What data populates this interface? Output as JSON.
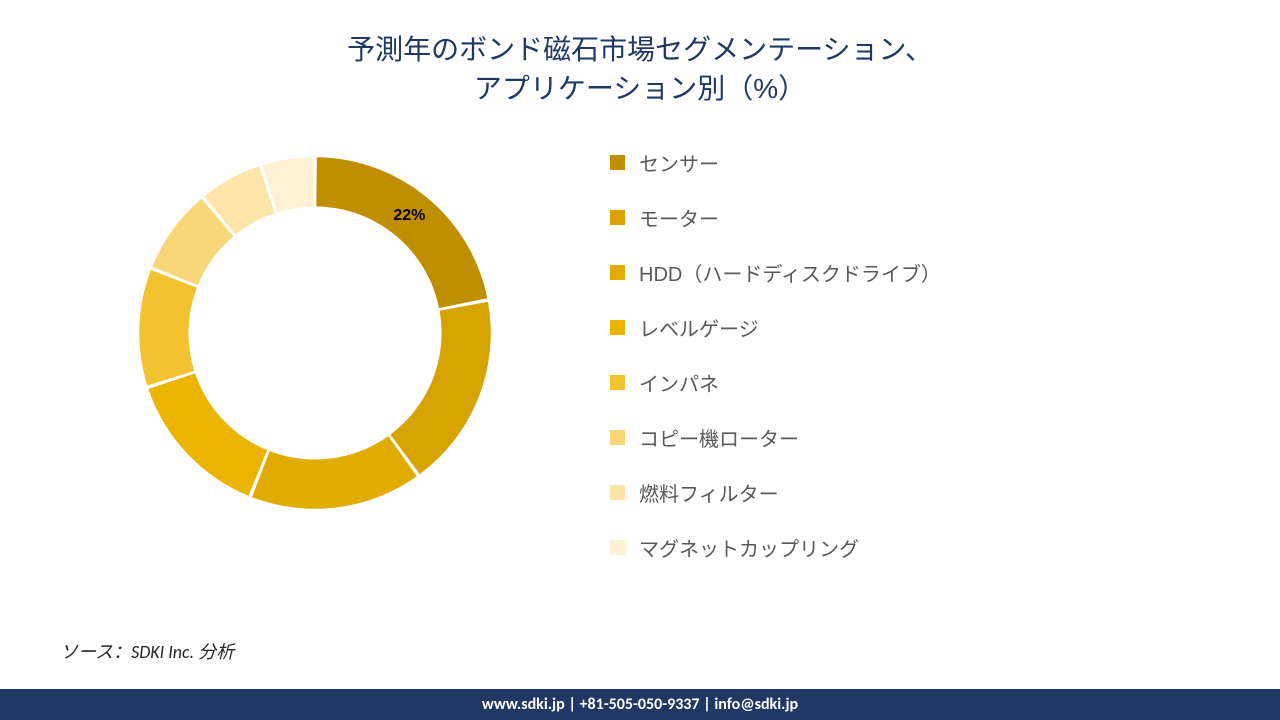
{
  "title": {
    "line1": "予測年のボンド磁石市場セグメンテーション、",
    "line2": "アプリケーション別（%）",
    "color": "#1f3864",
    "fontsize": 28
  },
  "chart": {
    "type": "donut",
    "inner_radius_ratio": 0.72,
    "gap_deg": 1.2,
    "background_color": "#ffffff",
    "slices": [
      {
        "label": "センサー",
        "value": 22,
        "color": "#bf8f00",
        "show_pct": true,
        "pct_text": "22%"
      },
      {
        "label": "モーター",
        "value": 18,
        "color": "#d6a300",
        "show_pct": false
      },
      {
        "label": "HDD（ハードディスクドライブ）",
        "value": 16,
        "color": "#e0ac00",
        "show_pct": false
      },
      {
        "label": "レベルゲージ",
        "value": 14,
        "color": "#ebb400",
        "show_pct": false
      },
      {
        "label": "インパネ",
        "value": 11,
        "color": "#f3c230",
        "show_pct": false
      },
      {
        "label": "コピー機ローター",
        "value": 8,
        "color": "#f9d778",
        "show_pct": false
      },
      {
        "label": "燃料フィルター",
        "value": 6,
        "color": "#fde4a8",
        "show_pct": false
      },
      {
        "label": "マグネットカップリング",
        "value": 5,
        "color": "#fef1d4",
        "show_pct": false
      }
    ],
    "label_fontsize": 16,
    "label_fontweight": 700,
    "label_color": "#000000"
  },
  "legend": {
    "fontsize": 20,
    "text_color": "#595959",
    "swatch_size": 15
  },
  "source": {
    "text": "ソース：SDKI Inc. 分析",
    "color": "#262626",
    "fontsize": 18
  },
  "footer": {
    "text": "www.sdki.jp | +81-505-050-9337 | info@sdki.jp",
    "background_color": "#1f3864",
    "text_color": "#ffffff",
    "fontsize": 16
  }
}
